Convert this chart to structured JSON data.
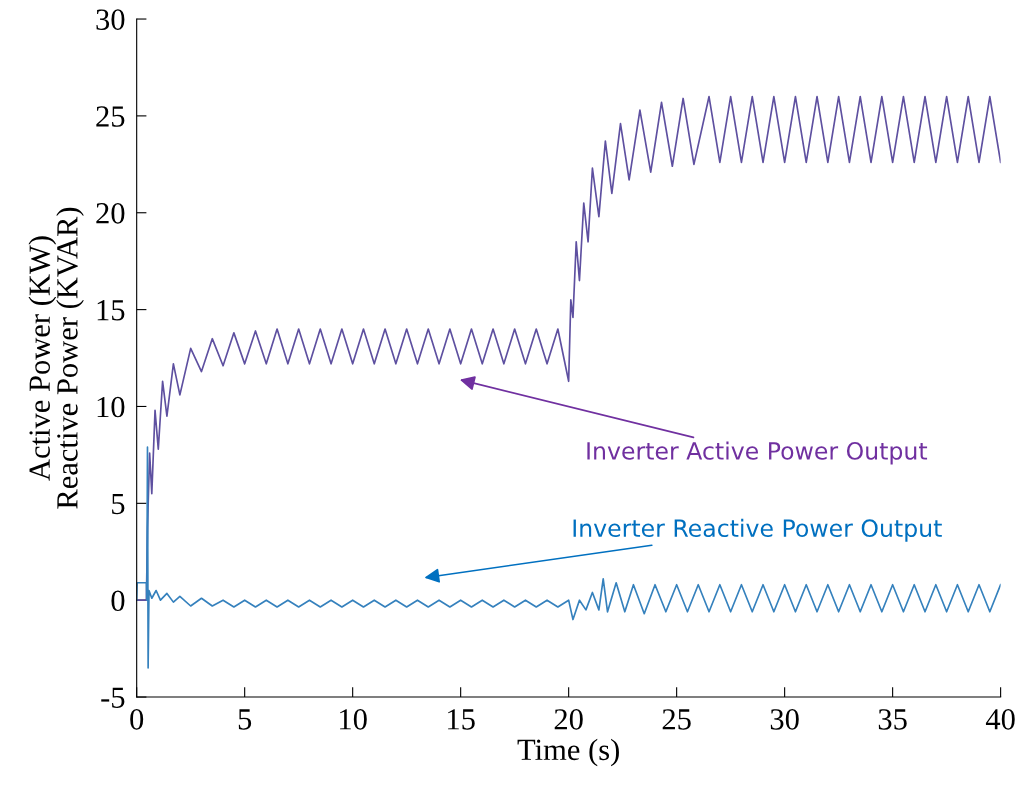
{
  "chart_data": {
    "type": "line",
    "xlabel": "Time (s)",
    "ylabel": "Active Power (KW)\nReactive Power (KVAR)",
    "xlim": [
      0,
      40
    ],
    "ylim": [
      -5,
      30
    ],
    "xticks": [
      0,
      5,
      10,
      15,
      20,
      25,
      30,
      35,
      40
    ],
    "yticks": [
      -5,
      0,
      5,
      10,
      15,
      20,
      25,
      30
    ],
    "grid": false,
    "legend": false,
    "series": [
      {
        "color": "#5e50a0",
        "x": [
          0,
          0.45,
          0.5,
          0.6,
          0.7,
          0.85,
          1.0,
          1.2,
          1.4,
          1.7,
          2.0,
          2.5,
          3.0,
          3.5,
          4.0,
          4.5,
          5.0,
          5.5,
          6,
          6.5,
          7,
          7.5,
          8,
          8.5,
          9,
          9.5,
          10,
          10.5,
          11,
          11.5,
          12,
          12.5,
          13,
          13.5,
          14,
          14.5,
          15,
          15.5,
          16,
          16.5,
          17,
          17.5,
          18,
          18.5,
          19,
          19.5,
          20,
          20.1,
          20.2,
          20.35,
          20.5,
          20.7,
          20.9,
          21.1,
          21.4,
          21.7,
          22.0,
          22.4,
          22.8,
          23.3,
          23.8,
          24.3,
          24.8,
          25.3,
          25.8,
          26.5,
          27,
          27.5,
          28,
          28.5,
          29,
          29.5,
          30,
          30.5,
          31,
          31.5,
          32,
          32.5,
          33,
          33.5,
          34,
          34.5,
          35,
          35.5,
          36,
          36.5,
          37,
          37.5,
          38,
          38.5,
          39,
          39.5,
          40
        ],
        "values": [
          0,
          0,
          3.7,
          7.6,
          5.5,
          9.8,
          7.8,
          11.3,
          9.5,
          12.2,
          10.6,
          13.0,
          11.8,
          13.5,
          12.1,
          13.8,
          12.2,
          13.9,
          12.2,
          14.0,
          12.2,
          14.0,
          12.2,
          14.0,
          12.2,
          14.0,
          12.2,
          14.0,
          12.2,
          14.0,
          12.2,
          14.0,
          12.2,
          14.0,
          12.2,
          14.0,
          12.2,
          14.0,
          12.2,
          14.0,
          12.2,
          14.0,
          12.2,
          14.0,
          12.2,
          14.0,
          11.3,
          15.5,
          14.6,
          18.5,
          16.5,
          20.5,
          18.5,
          22.3,
          19.8,
          23.7,
          21.0,
          24.6,
          21.7,
          25.3,
          22.1,
          25.7,
          22.4,
          25.9,
          22.5,
          26.0,
          22.6,
          26.0,
          22.6,
          26.0,
          22.6,
          26.0,
          22.6,
          26.0,
          22.6,
          26.0,
          22.6,
          26.0,
          22.6,
          26.0,
          22.6,
          26.0,
          22.6,
          26.0,
          22.6,
          26.0,
          22.6,
          26.0,
          22.6,
          26.0,
          22.6,
          26.0,
          22.6
        ]
      },
      {
        "color": "#3581bd",
        "x": [
          0,
          0.02,
          0.45,
          0.47,
          0.5,
          0.53,
          0.57,
          0.7,
          0.9,
          1.1,
          1.4,
          1.7,
          2.0,
          2.5,
          3.0,
          3.5,
          4,
          4.5,
          5,
          5.5,
          6,
          6.5,
          7,
          7.5,
          8,
          8.5,
          9,
          9.5,
          10,
          10.5,
          11,
          11.5,
          12,
          12.5,
          13,
          13.5,
          14,
          14.5,
          15,
          15.5,
          16,
          16.5,
          17,
          17.5,
          18,
          18.5,
          19,
          19.5,
          20,
          20.2,
          20.5,
          20.8,
          21.1,
          21.4,
          21.6,
          21.8,
          22.2,
          22.6,
          23,
          23.5,
          24,
          24.5,
          25,
          25.5,
          26,
          26.5,
          27,
          27.5,
          28,
          28.5,
          29,
          29.5,
          30,
          30.5,
          31,
          31.5,
          32,
          32.5,
          33,
          33.5,
          34,
          34.5,
          35,
          35.5,
          36,
          36.5,
          37,
          37.5,
          38,
          38.5,
          39,
          39.5,
          40
        ],
        "values": [
          0,
          0.9,
          0.9,
          0,
          7.9,
          -3.5,
          0.5,
          0.1,
          0.5,
          0.0,
          0.35,
          -0.1,
          0.2,
          -0.3,
          0.1,
          -0.3,
          0.0,
          -0.35,
          0.0,
          -0.35,
          0.0,
          -0.35,
          0.0,
          -0.35,
          0.0,
          -0.35,
          0.0,
          -0.35,
          0.0,
          -0.35,
          0.0,
          -0.35,
          0.0,
          -0.35,
          0.0,
          -0.35,
          0.0,
          -0.35,
          0.0,
          -0.35,
          0.0,
          -0.35,
          0.0,
          -0.35,
          0.0,
          -0.35,
          0.0,
          -0.35,
          0.0,
          -1.0,
          0.0,
          -0.5,
          0.4,
          -0.5,
          1.1,
          -0.6,
          0.9,
          -0.6,
          0.8,
          -0.7,
          0.8,
          -0.6,
          0.8,
          -0.6,
          0.8,
          -0.6,
          0.8,
          -0.6,
          0.8,
          -0.6,
          0.8,
          -0.6,
          0.8,
          -0.6,
          0.8,
          -0.6,
          0.8,
          -0.6,
          0.8,
          -0.6,
          0.8,
          -0.6,
          0.8,
          -0.6,
          0.8,
          -0.6,
          0.8,
          -0.6,
          0.8,
          -0.6,
          0.8,
          -0.6,
          0.8
        ]
      }
    ],
    "annotations": [
      "Inverter Active Power Output",
      "Inverter Reactive Power Output"
    ]
  }
}
